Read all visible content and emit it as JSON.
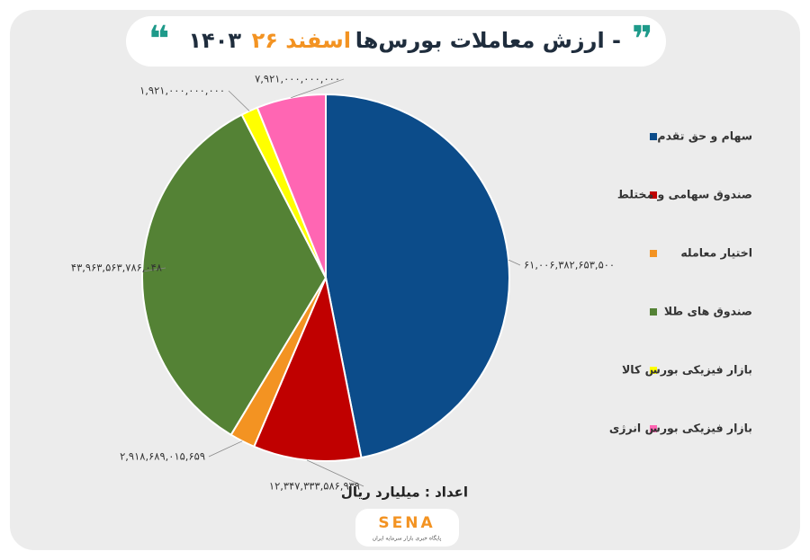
{
  "chart_data": {
    "type": "pie",
    "title": "ارزش معاملات بورس‌ها -",
    "title_date": "۲۶ اسفند",
    "title_year": "۱۴۰۳",
    "unit_note": "اعداد : میلیارد ریال",
    "logo": "SENA",
    "logo_tagline": "پایگاه خبری بازار سرمایه ایران",
    "categories": [
      "سهام و حق تقدم",
      "صندوق سهامی و مختلط",
      "اختیار معامله",
      "صندوق های طلا",
      "بازار فیزیکی بورس کالا",
      "بازار فیزیکی بورس انرژی"
    ],
    "values": [
      61006382653500,
      12347333586939,
      2918689015659,
      43963563786048,
      1921000000000,
      7921000000000
    ],
    "value_labels": [
      "۶۱,۰۰۶,۳۸۲,۶۵۳,۵۰۰",
      "۱۲,۳۴۷,۳۳۳,۵۸۶,۹۳۹",
      "۲,۹۱۸,۶۸۹,۰۱۵,۶۵۹",
      "۴۳,۹۶۳,۵۶۳,۷۸۶,۰۴۸",
      "۱,۹۲۱,۰۰۰,۰۰۰,۰۰۰",
      "۷,۹۲۱,۰۰۰,۰۰۰,۰۰۰"
    ],
    "colors": [
      "#0c4c8a",
      "#c00000",
      "#f39322",
      "#548235",
      "#ffff00",
      "#ff66b3"
    ],
    "legend": "right"
  }
}
